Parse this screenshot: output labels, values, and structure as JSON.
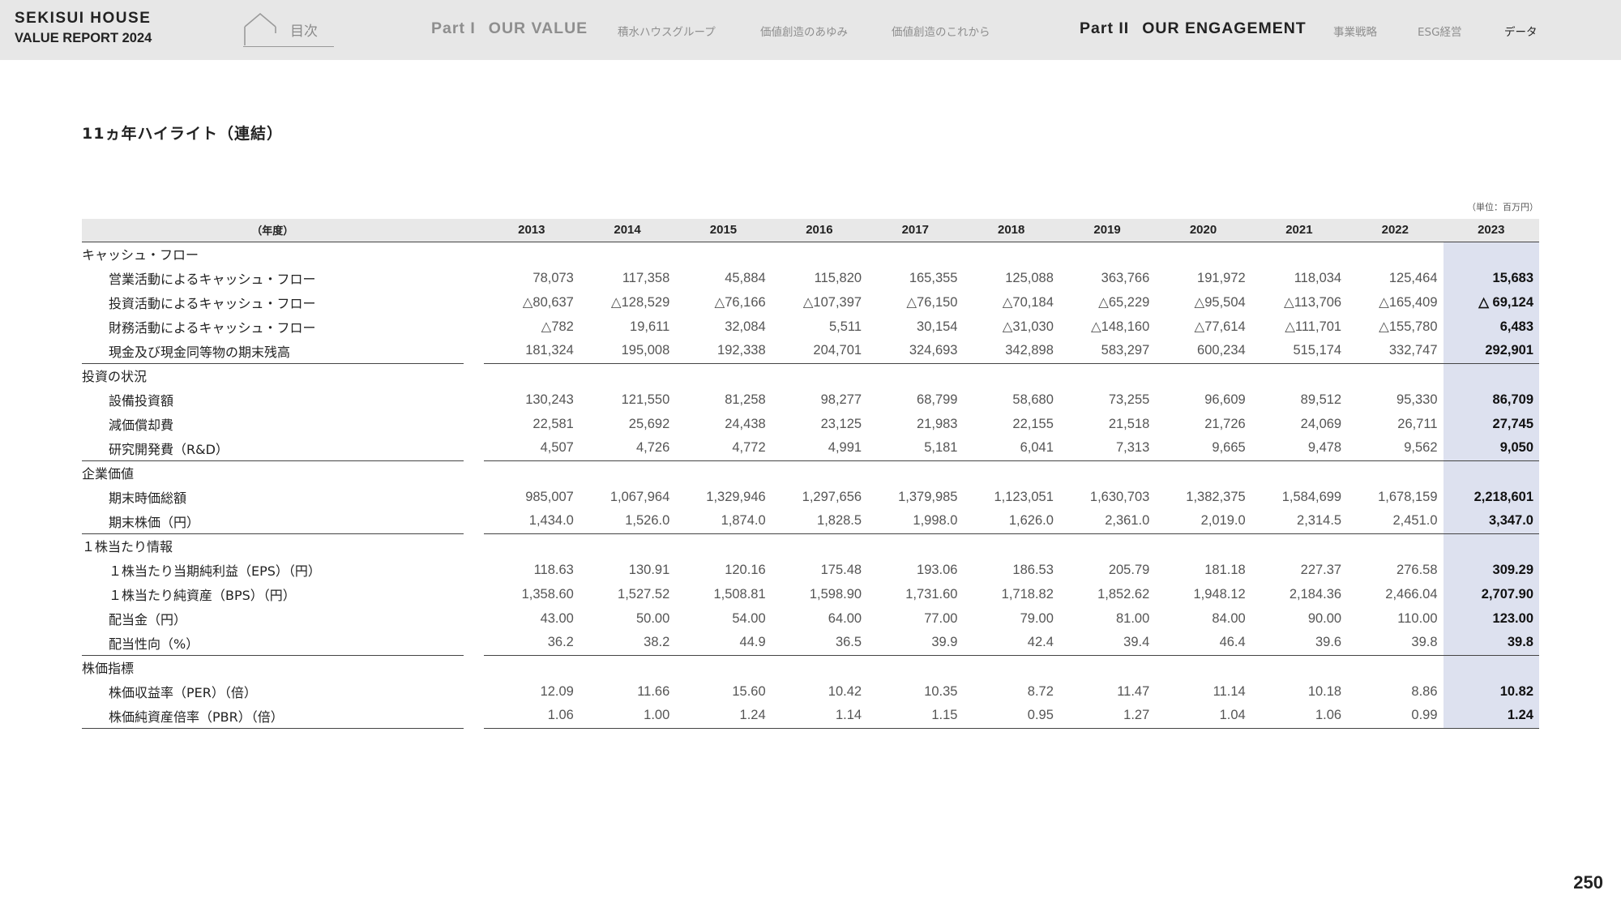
{
  "header": {
    "brand_line1": "SEKISUI HOUSE",
    "brand_line2": "VALUE REPORT 2024",
    "toc_label": "目次",
    "part1_num": "Part I",
    "part1_title": "OUR VALUE",
    "part1_items": [
      "積水ハウスグループ",
      "価値創造のあゆみ",
      "価値創造のこれから"
    ],
    "part2_num": "Part II",
    "part2_title": "OUR ENGAGEMENT",
    "part2_items": [
      "事業戦略",
      "ESG経営",
      "データ"
    ]
  },
  "page": {
    "title": "11ヵ年ハイライト（連結）",
    "unit_note": "（単位：百万円）",
    "page_number": "250"
  },
  "colors": {
    "header_bg": "#e7e7e7",
    "highlight_column": "#dde1ef",
    "table_header_bg": "#e8e8e8"
  },
  "table": {
    "year_label": "（年度）",
    "years": [
      "2013",
      "2014",
      "2015",
      "2016",
      "2017",
      "2018",
      "2019",
      "2020",
      "2021",
      "2022",
      "2023"
    ],
    "highlight_year": "2023",
    "groups": [
      {
        "title": "キャッシュ・フロー",
        "rows": [
          {
            "label": "営業活動によるキャッシュ・フロー",
            "values": [
              "78,073",
              "117,358",
              "45,884",
              "115,820",
              "165,355",
              "125,088",
              "363,766",
              "191,972",
              "118,034",
              "125,464",
              "15,683"
            ]
          },
          {
            "label": "投資活動によるキャッシュ・フロー",
            "values": [
              "△80,637",
              "△128,529",
              "△76,166",
              "△107,397",
              "△76,150",
              "△70,184",
              "△65,229",
              "△95,504",
              "△113,706",
              "△165,409",
              "△ 69,124"
            ]
          },
          {
            "label": "財務活動によるキャッシュ・フロー",
            "values": [
              "△782",
              "19,611",
              "32,084",
              "5,511",
              "30,154",
              "△31,030",
              "△148,160",
              "△77,614",
              "△111,701",
              "△155,780",
              "6,483"
            ]
          },
          {
            "label": "現金及び現金同等物の期末残高",
            "values": [
              "181,324",
              "195,008",
              "192,338",
              "204,701",
              "324,693",
              "342,898",
              "583,297",
              "600,234",
              "515,174",
              "332,747",
              "292,901"
            ]
          }
        ]
      },
      {
        "title": "投資の状況",
        "rows": [
          {
            "label": "設備投資額",
            "values": [
              "130,243",
              "121,550",
              "81,258",
              "98,277",
              "68,799",
              "58,680",
              "73,255",
              "96,609",
              "89,512",
              "95,330",
              "86,709"
            ]
          },
          {
            "label": "減価償却費",
            "values": [
              "22,581",
              "25,692",
              "24,438",
              "23,125",
              "21,983",
              "22,155",
              "21,518",
              "21,726",
              "24,069",
              "26,711",
              "27,745"
            ]
          },
          {
            "label": "研究開発費（R&D）",
            "values": [
              "4,507",
              "4,726",
              "4,772",
              "4,991",
              "5,181",
              "6,041",
              "7,313",
              "9,665",
              "9,478",
              "9,562",
              "9,050"
            ]
          }
        ]
      },
      {
        "title": "企業価値",
        "rows": [
          {
            "label": "期末時価総額",
            "values": [
              "985,007",
              "1,067,964",
              "1,329,946",
              "1,297,656",
              "1,379,985",
              "1,123,051",
              "1,630,703",
              "1,382,375",
              "1,584,699",
              "1,678,159",
              "2,218,601"
            ]
          },
          {
            "label": "期末株価（円）",
            "values": [
              "1,434.0",
              "1,526.0",
              "1,874.0",
              "1,828.5",
              "1,998.0",
              "1,626.0",
              "2,361.0",
              "2,019.0",
              "2,314.5",
              "2,451.0",
              "3,347.0"
            ]
          }
        ]
      },
      {
        "title": "１株当たり情報",
        "rows": [
          {
            "label": "１株当たり当期純利益（EPS）（円）",
            "values": [
              "118.63",
              "130.91",
              "120.16",
              "175.48",
              "193.06",
              "186.53",
              "205.79",
              "181.18",
              "227.37",
              "276.58",
              "309.29"
            ]
          },
          {
            "label": "１株当たり純資産（BPS）（円）",
            "values": [
              "1,358.60",
              "1,527.52",
              "1,508.81",
              "1,598.90",
              "1,731.60",
              "1,718.82",
              "1,852.62",
              "1,948.12",
              "2,184.36",
              "2,466.04",
              "2,707.90"
            ]
          },
          {
            "label": "配当金（円）",
            "values": [
              "43.00",
              "50.00",
              "54.00",
              "64.00",
              "77.00",
              "79.00",
              "81.00",
              "84.00",
              "90.00",
              "110.00",
              "123.00"
            ]
          },
          {
            "label": "配当性向（%）",
            "values": [
              "36.2",
              "38.2",
              "44.9",
              "36.5",
              "39.9",
              "42.4",
              "39.4",
              "46.4",
              "39.6",
              "39.8",
              "39.8"
            ]
          }
        ]
      },
      {
        "title": "株価指標",
        "rows": [
          {
            "label": "株価収益率（PER）（倍）",
            "values": [
              "12.09",
              "11.66",
              "15.60",
              "10.42",
              "10.35",
              "8.72",
              "11.47",
              "11.14",
              "10.18",
              "8.86",
              "10.82"
            ]
          },
          {
            "label": "株価純資産倍率（PBR）（倍）",
            "values": [
              "1.06",
              "1.00",
              "1.24",
              "1.14",
              "1.15",
              "0.95",
              "1.27",
              "1.04",
              "1.06",
              "0.99",
              "1.24"
            ]
          }
        ]
      }
    ]
  }
}
